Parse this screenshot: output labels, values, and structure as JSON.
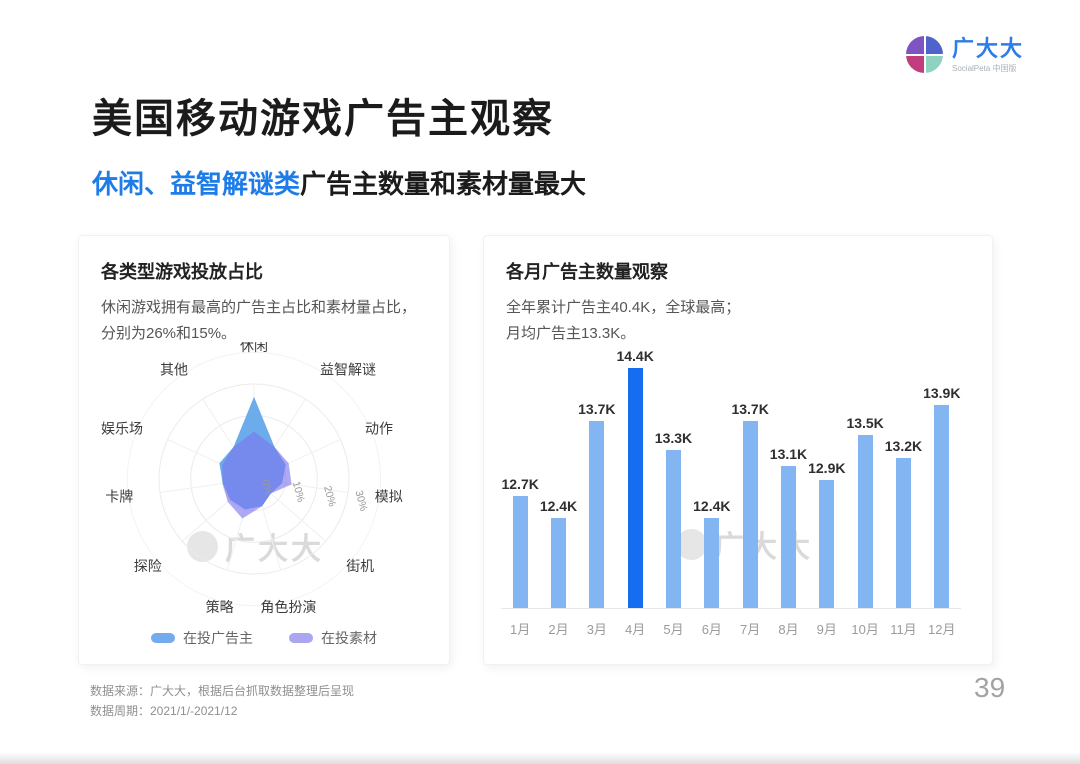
{
  "page": {
    "number": "39"
  },
  "logo": {
    "name": "广大大",
    "subtitle": "SocialPeta 中国版",
    "name_color": "#2d7de8",
    "colors": {
      "top_left": "#7d54c2",
      "top_right": "#4f63cd",
      "bottom_left": "#c23d7e",
      "bottom_right": "#8fd2c0"
    }
  },
  "header": {
    "title": "美国移动游戏广告主观察",
    "subtitle_highlight": "休闲、益智解谜类",
    "subtitle_rest": "广告主数量和素材量最大"
  },
  "cards": {
    "radar": {
      "title": "各类型游戏投放占比",
      "desc_line1": "休闲游戏拥有最高的广告主占比和素材量占比，",
      "desc_line2": "分别为26%和15%。"
    },
    "bar": {
      "title": "各月广告主数量观察",
      "desc_line1": "全年累计广告主40.4K，全球最高；",
      "desc_line2": "月均广告主13.3K。"
    }
  },
  "watermark": {
    "text": "广大大"
  },
  "footer": {
    "source": "数据来源：广大大，根据后台抓取数据整理后呈现",
    "period": "数据周期：2021/1/-2021/12"
  },
  "colors": {
    "accent_blue": "#1e7ce8",
    "bar_normal": "#83b5f2",
    "bar_highlight": "#176df0",
    "radar_advertiser_fill": "#61a5e8",
    "radar_creative_fill": "#7c74ed",
    "legend_advertiser": "#74abef",
    "legend_creative": "#aba6f2"
  },
  "chart_data": [
    {
      "type": "radar",
      "title": "各类型游戏投放占比",
      "categories": [
        "休闲",
        "益智解谜",
        "动作",
        "模拟",
        "街机",
        "角色扮演",
        "策略",
        "探险",
        "卡牌",
        "娱乐场",
        "其他"
      ],
      "axis_ticks": [
        "0%",
        "10%",
        "20%",
        "30%"
      ],
      "axis_max": 30,
      "ring_step": 10,
      "grid": "circular",
      "legend_position": "bottom",
      "series": [
        {
          "name": "在投广告主",
          "values": [
            26,
            12,
            11,
            9,
            7,
            9,
            10,
            10,
            10,
            12,
            12
          ]
        },
        {
          "name": "在投素材",
          "values": [
            15,
            12,
            12,
            12,
            7,
            9,
            13,
            11,
            10,
            11,
            12
          ]
        }
      ]
    },
    {
      "type": "bar",
      "title": "各月广告主数量观察",
      "categories": [
        "1月",
        "2月",
        "3月",
        "4月",
        "5月",
        "6月",
        "7月",
        "8月",
        "9月",
        "10月",
        "11月",
        "12月"
      ],
      "values": [
        12.7,
        12.4,
        13.7,
        14.4,
        13.3,
        12.4,
        13.7,
        13.1,
        12.9,
        13.5,
        13.2,
        13.9
      ],
      "labels": [
        "12.7K",
        "12.4K",
        "13.7K",
        "14.4K",
        "13.3K",
        "12.4K",
        "13.7K",
        "13.1K",
        "12.9K",
        "13.5K",
        "13.2K",
        "13.9K"
      ],
      "unit": "K",
      "highlight_index": 3,
      "y_axis_visible": false,
      "visual_baseline": 11.2,
      "visual_max": 14.4
    }
  ]
}
